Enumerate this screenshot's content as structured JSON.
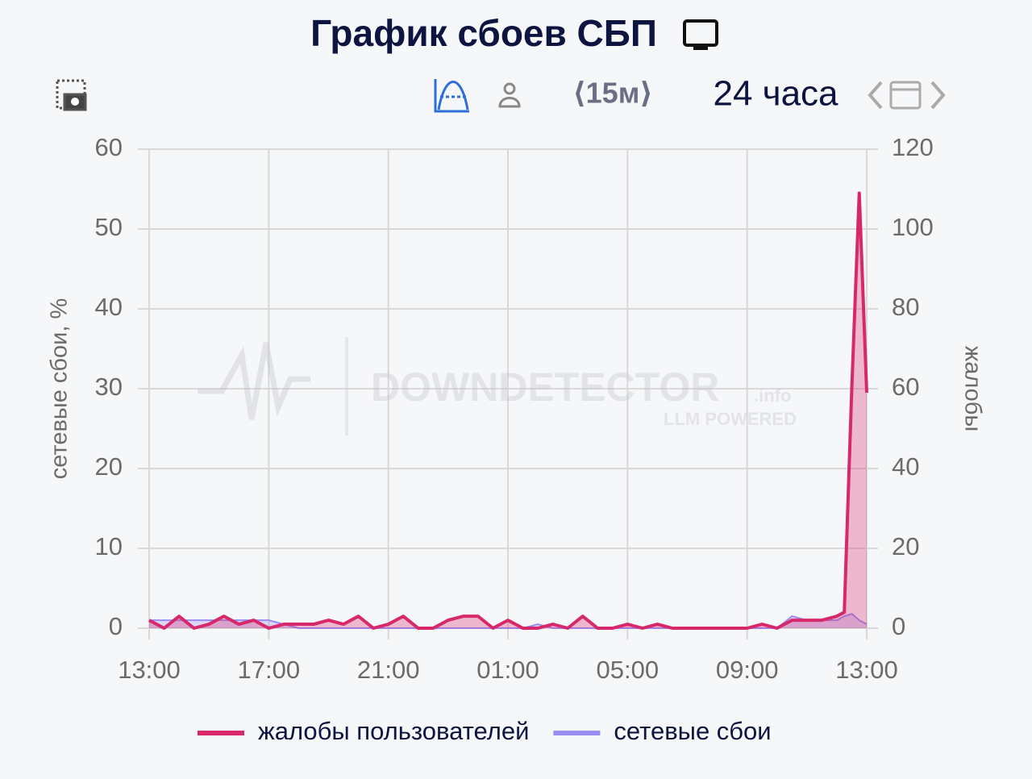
{
  "header": {
    "title": "График сбоев СБП",
    "interval": "⟨15м⟩",
    "period": "24 часа"
  },
  "watermark": {
    "brand": "DOWNDETECTOR",
    "suffix": ".info",
    "tagline": "LLM POWERED"
  },
  "chart_data": {
    "type": "line",
    "y_label": "сетевые сбои, %",
    "y2_label": "жалобы",
    "x": [
      0,
      0.5,
      1,
      1.5,
      2,
      2.5,
      3,
      3.5,
      4,
      4.5,
      5,
      5.5,
      6,
      6.5,
      7,
      7.5,
      8,
      8.5,
      9,
      9.5,
      10,
      10.5,
      11,
      11.5,
      12,
      12.5,
      13,
      13.5,
      14,
      14.5,
      15,
      15.5,
      16,
      16.5,
      17,
      17.5,
      18,
      18.5,
      19,
      19.5,
      20,
      20.5,
      21,
      21.5,
      22,
      22.5,
      23,
      23.25,
      23.5,
      23.75,
      24
    ],
    "xlim": [
      0,
      24
    ],
    "xticks": [
      {
        "value": 0,
        "label": "13:00"
      },
      {
        "value": 4,
        "label": "17:00"
      },
      {
        "value": 8,
        "label": "21:00"
      },
      {
        "value": 12,
        "label": "01:00"
      },
      {
        "value": 16,
        "label": "05:00"
      },
      {
        "value": 20,
        "label": "09:00"
      },
      {
        "value": 24,
        "label": "13:00"
      }
    ],
    "ylim": [
      0,
      60
    ],
    "yticks": [
      0,
      10,
      20,
      30,
      40,
      50,
      60
    ],
    "y2lim": [
      0,
      120
    ],
    "y2ticks": [
      0,
      20,
      40,
      60,
      80,
      100,
      120
    ],
    "grid": true,
    "series": [
      {
        "name": "жалобы пользователей",
        "color": "#d6286b",
        "axis": "y2",
        "values": [
          2,
          0,
          3,
          0,
          1,
          3,
          1,
          2,
          0,
          1,
          1,
          1,
          2,
          1,
          3,
          0,
          1,
          3,
          0,
          0,
          2,
          3,
          3,
          0,
          2,
          0,
          0,
          1,
          0,
          3,
          0,
          0,
          1,
          0,
          1,
          0,
          0,
          0,
          0,
          0,
          0,
          1,
          0,
          2,
          2,
          2,
          3,
          4,
          60,
          109,
          59
        ]
      },
      {
        "name": "сетевые сбои",
        "color": "#9b8cf0",
        "values": [
          1,
          1,
          1,
          1,
          1,
          1,
          1,
          1,
          1,
          0.5,
          0,
          0,
          0,
          0,
          0,
          0,
          0,
          0,
          0,
          0,
          0,
          0,
          0,
          0,
          0,
          0,
          0.5,
          0,
          0,
          0,
          0,
          0,
          0,
          0,
          0,
          0,
          0,
          0,
          0,
          0,
          0,
          0,
          0,
          1.5,
          1,
          1,
          1,
          1.5,
          1.8,
          1,
          0.5
        ]
      }
    ]
  }
}
